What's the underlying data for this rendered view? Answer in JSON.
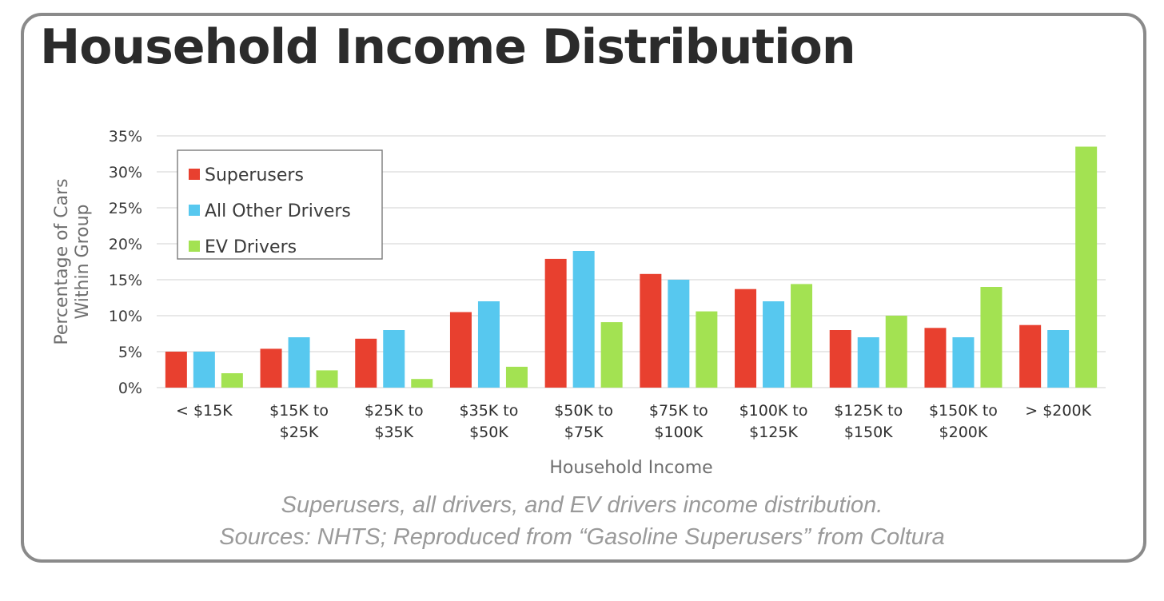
{
  "header": {
    "title": "Household Income Distribution"
  },
  "caption": {
    "line1": "Superusers, all drivers, and EV drivers income distribution.",
    "line2": "Sources: NHTS; Reproduced from “Gasoline Superusers” from Coltura"
  },
  "colors": {
    "superusers": "#e8402f",
    "others": "#57c8ef",
    "ev": "#a3e252"
  },
  "chart_data": {
    "type": "bar",
    "title": "",
    "xlabel": "Household Income",
    "ylabel": "Percentage of Cars Within Group",
    "ylim": [
      0,
      35
    ],
    "yticks": [
      "0%",
      "5%",
      "10%",
      "15%",
      "20%",
      "25%",
      "30%",
      "35%"
    ],
    "grid": true,
    "legend_position": "top-left",
    "categories": [
      [
        "< $15K"
      ],
      [
        "$15K to",
        "$25K"
      ],
      [
        "$25K to",
        "$35K"
      ],
      [
        "$35K to",
        "$50K"
      ],
      [
        "$50K to",
        "$75K"
      ],
      [
        "$75K to",
        "$100K"
      ],
      [
        "$100K to",
        "$125K"
      ],
      [
        "$125K to",
        "$150K"
      ],
      [
        "$150K to",
        "$200K"
      ],
      [
        "> $200K"
      ]
    ],
    "series": [
      {
        "name": "Superusers",
        "color": "#e8402f",
        "values": [
          5.0,
          5.4,
          6.8,
          10.5,
          17.9,
          15.8,
          13.7,
          8.0,
          8.3,
          8.7
        ]
      },
      {
        "name": "All Other Drivers",
        "color": "#57c8ef",
        "values": [
          5.0,
          7.0,
          8.0,
          12.0,
          19.0,
          15.0,
          12.0,
          7.0,
          7.0,
          8.0
        ]
      },
      {
        "name": "EV Drivers",
        "color": "#a3e252",
        "values": [
          2.0,
          2.4,
          1.2,
          2.9,
          9.1,
          10.6,
          14.4,
          10.0,
          14.0,
          33.5
        ]
      }
    ]
  }
}
